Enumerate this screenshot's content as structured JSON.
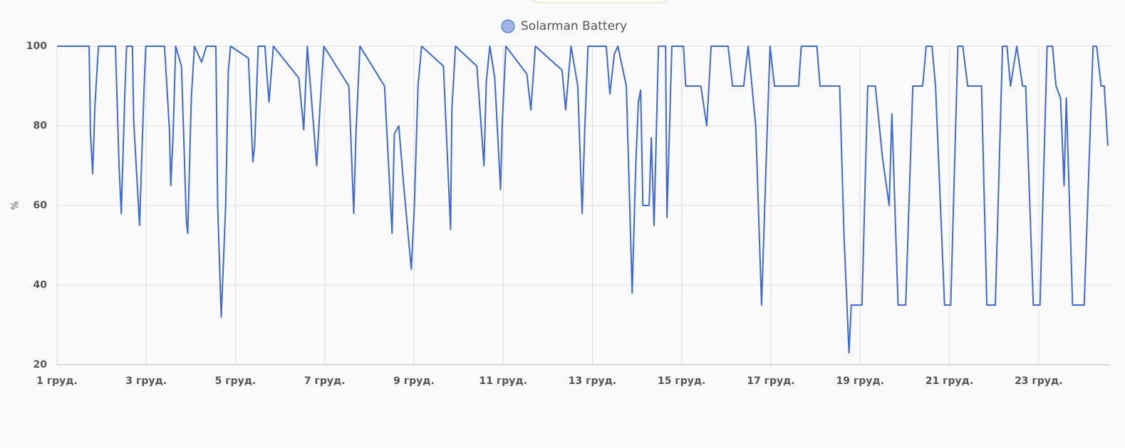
{
  "chart_data": {
    "type": "line",
    "legend": "Solarman Battery",
    "y_label": "%",
    "series": [
      {
        "name": "Solarman Battery",
        "color": "#3e6ad1",
        "x": [
          1.0,
          1.72,
          1.75,
          1.8,
          1.85,
          1.93,
          2.31,
          2.39,
          2.44,
          2.52,
          2.56,
          2.69,
          2.72,
          2.85,
          2.95,
          2.99,
          3.41,
          3.52,
          3.55,
          3.6,
          3.66,
          3.79,
          3.9,
          3.93,
          4.01,
          4.08,
          4.24,
          4.35,
          4.56,
          4.6,
          4.68,
          4.78,
          4.84,
          4.89,
          5.29,
          5.39,
          5.43,
          5.51,
          5.66,
          5.75,
          5.85,
          6.42,
          6.53,
          6.61,
          6.82,
          6.9,
          6.98,
          7.54,
          7.65,
          7.7,
          7.79,
          8.34,
          8.51,
          8.56,
          8.66,
          8.77,
          8.94,
          9.01,
          9.09,
          9.17,
          9.66,
          9.82,
          9.85,
          9.93,
          10.41,
          10.57,
          10.62,
          10.7,
          10.81,
          10.94,
          10.98,
          11.06,
          11.53,
          11.62,
          11.72,
          12.32,
          12.4,
          12.52,
          12.67,
          12.77,
          12.83,
          12.9,
          13.31,
          13.39,
          13.49,
          13.57,
          13.76,
          13.89,
          13.97,
          14.03,
          14.08,
          14.13,
          14.27,
          14.32,
          14.38,
          14.48,
          14.64,
          14.67,
          14.78,
          15.04,
          15.09,
          15.43,
          15.56,
          15.66,
          16.04,
          16.14,
          16.39,
          16.49,
          16.66,
          16.79,
          16.92,
          16.98,
          17.08,
          17.62,
          17.68,
          18.03,
          18.1,
          18.54,
          18.64,
          18.75,
          18.8,
          19.04,
          19.17,
          19.34,
          19.5,
          19.65,
          19.71,
          19.85,
          20.02,
          20.18,
          20.4,
          20.48,
          20.61,
          20.69,
          20.89,
          21.03,
          21.19,
          21.3,
          21.41,
          21.72,
          21.84,
          22.03,
          22.19,
          22.29,
          22.37,
          22.51,
          22.64,
          22.71,
          22.88,
          23.03,
          23.19,
          23.31,
          23.39,
          23.49,
          23.57,
          23.62,
          23.76,
          24.02,
          24.22,
          24.3,
          24.4,
          24.47,
          24.55
        ],
        "values": [
          100,
          100,
          78,
          68,
          85,
          100,
          100,
          70,
          58,
          88,
          100,
          100,
          81,
          55,
          89,
          100,
          100,
          79,
          65,
          77,
          100,
          95,
          56,
          53,
          87,
          100,
          96,
          100,
          100,
          60,
          32,
          60,
          94,
          100,
          97,
          71,
          75,
          100,
          100,
          86,
          100,
          92,
          79,
          100,
          70,
          86,
          100,
          90,
          58,
          78,
          100,
          90,
          53,
          78,
          80,
          65,
          44,
          60,
          90,
          100,
          95,
          54,
          84,
          100,
          95,
          70,
          91,
          100,
          92,
          64,
          81,
          100,
          93,
          84,
          100,
          94,
          84,
          100,
          90,
          58,
          80,
          100,
          100,
          88,
          98,
          100,
          90,
          38,
          70,
          86,
          89,
          60,
          60,
          77,
          55,
          100,
          100,
          57,
          100,
          100,
          90,
          90,
          80,
          100,
          100,
          90,
          90,
          100,
          80,
          35,
          80,
          100,
          90,
          90,
          100,
          100,
          90,
          90,
          52,
          23,
          35,
          35,
          90,
          90,
          72,
          60,
          83,
          35,
          35,
          90,
          90,
          100,
          100,
          90,
          35,
          35,
          100,
          100,
          90,
          90,
          35,
          35,
          100,
          100,
          90,
          100,
          90,
          90,
          35,
          35,
          100,
          100,
          90,
          87,
          65,
          87,
          35,
          35,
          100,
          100,
          90,
          90,
          75
        ]
      }
    ],
    "xlim": [
      1,
      24.6
    ],
    "xticks": [
      {
        "value": 1,
        "label": "1 груд."
      },
      {
        "value": 3,
        "label": "3 груд."
      },
      {
        "value": 5,
        "label": "5 груд."
      },
      {
        "value": 7,
        "label": "7 груд."
      },
      {
        "value": 9,
        "label": "9 груд."
      },
      {
        "value": 11,
        "label": "11 груд."
      },
      {
        "value": 13,
        "label": "13 груд."
      },
      {
        "value": 15,
        "label": "15 груд."
      },
      {
        "value": 17,
        "label": "17 груд."
      },
      {
        "value": 19,
        "label": "19 груд."
      },
      {
        "value": 21,
        "label": "21 груд."
      },
      {
        "value": 23,
        "label": "23 груд."
      }
    ],
    "ylim": [
      20,
      100
    ],
    "yticks": [
      20,
      40,
      60,
      80,
      100
    ],
    "grid": true
  }
}
